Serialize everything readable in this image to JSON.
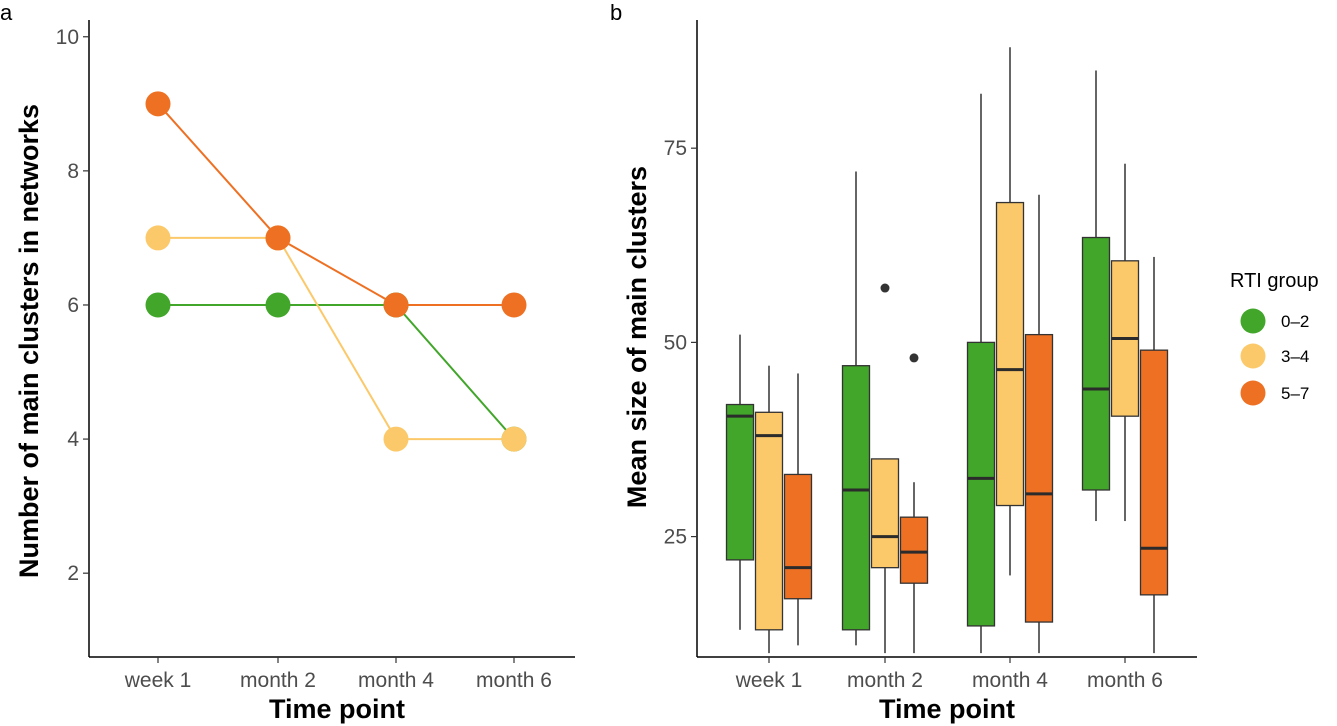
{
  "panels": {
    "a": {
      "label": "a"
    },
    "b": {
      "label": "b"
    }
  },
  "legend": {
    "title": "RTI group",
    "items": [
      {
        "label": "0–2",
        "color": "#41a62a"
      },
      {
        "label": "3–4",
        "color": "#fcc96a"
      },
      {
        "label": "5–7",
        "color": "#ee7023"
      }
    ]
  },
  "chart_data": [
    {
      "type": "line",
      "panel": "a",
      "title": "",
      "xlabel": "Time point",
      "ylabel": "Number of main clusters in networks",
      "categories": [
        "week 1",
        "month 2",
        "month 4",
        "month 6"
      ],
      "ylim": [
        0.75,
        10.25
      ],
      "yticks": [
        2,
        4,
        6,
        8,
        10
      ],
      "series": [
        {
          "name": "0–2",
          "color": "#41a62a",
          "values": [
            6,
            6,
            6,
            4
          ]
        },
        {
          "name": "3–4",
          "color": "#fcc96a",
          "values": [
            7,
            7,
            4,
            4
          ]
        },
        {
          "name": "5–7",
          "color": "#ee7023",
          "values": [
            9,
            7,
            6,
            6
          ]
        }
      ],
      "grid": false
    },
    {
      "type": "boxplot",
      "panel": "b",
      "title": "",
      "xlabel": "Time point",
      "ylabel": "Mean size of main clusters",
      "categories": [
        "week 1",
        "month 2",
        "month 4",
        "month 6"
      ],
      "ylim": [
        9.5,
        91.5
      ],
      "yticks": [
        25,
        50,
        75
      ],
      "series": [
        {
          "name": "0–2",
          "color": "#41a62a",
          "boxes": [
            {
              "whisker_low": 13,
              "q1": 22,
              "median": 40.5,
              "q3": 42,
              "whisker_high": 51,
              "outliers": []
            },
            {
              "whisker_low": 11,
              "q1": 13,
              "median": 31,
              "q3": 47,
              "whisker_high": 72,
              "outliers": []
            },
            {
              "whisker_low": 10,
              "q1": 13.5,
              "median": 32.5,
              "q3": 50,
              "whisker_high": 82,
              "outliers": []
            },
            {
              "whisker_low": 27,
              "q1": 31,
              "median": 44,
              "q3": 63.5,
              "whisker_high": 85,
              "outliers": []
            }
          ]
        },
        {
          "name": "3–4",
          "color": "#fcc96a",
          "boxes": [
            {
              "whisker_low": 10,
              "q1": 13,
              "median": 38,
              "q3": 41,
              "whisker_high": 47,
              "outliers": []
            },
            {
              "whisker_low": 10,
              "q1": 21,
              "median": 25,
              "q3": 35,
              "whisker_high": 35,
              "outliers": [
                57
              ]
            },
            {
              "whisker_low": 20,
              "q1": 29,
              "median": 46.5,
              "q3": 68,
              "whisker_high": 88,
              "outliers": []
            },
            {
              "whisker_low": 27,
              "q1": 40.5,
              "median": 50.5,
              "q3": 60.5,
              "whisker_high": 73,
              "outliers": []
            }
          ]
        },
        {
          "name": "5–7",
          "color": "#ee7023",
          "boxes": [
            {
              "whisker_low": 11,
              "q1": 17,
              "median": 21,
              "q3": 33,
              "whisker_high": 46,
              "outliers": []
            },
            {
              "whisker_low": 10,
              "q1": 19,
              "median": 23,
              "q3": 27.5,
              "whisker_high": 32,
              "outliers": [
                48
              ]
            },
            {
              "whisker_low": 10,
              "q1": 14,
              "median": 30.5,
              "q3": 51,
              "whisker_high": 69,
              "outliers": []
            },
            {
              "whisker_low": 10,
              "q1": 17.5,
              "median": 23.5,
              "q3": 49,
              "whisker_high": 61,
              "outliers": []
            }
          ]
        }
      ],
      "grid": false,
      "legend_position": "right"
    }
  ]
}
